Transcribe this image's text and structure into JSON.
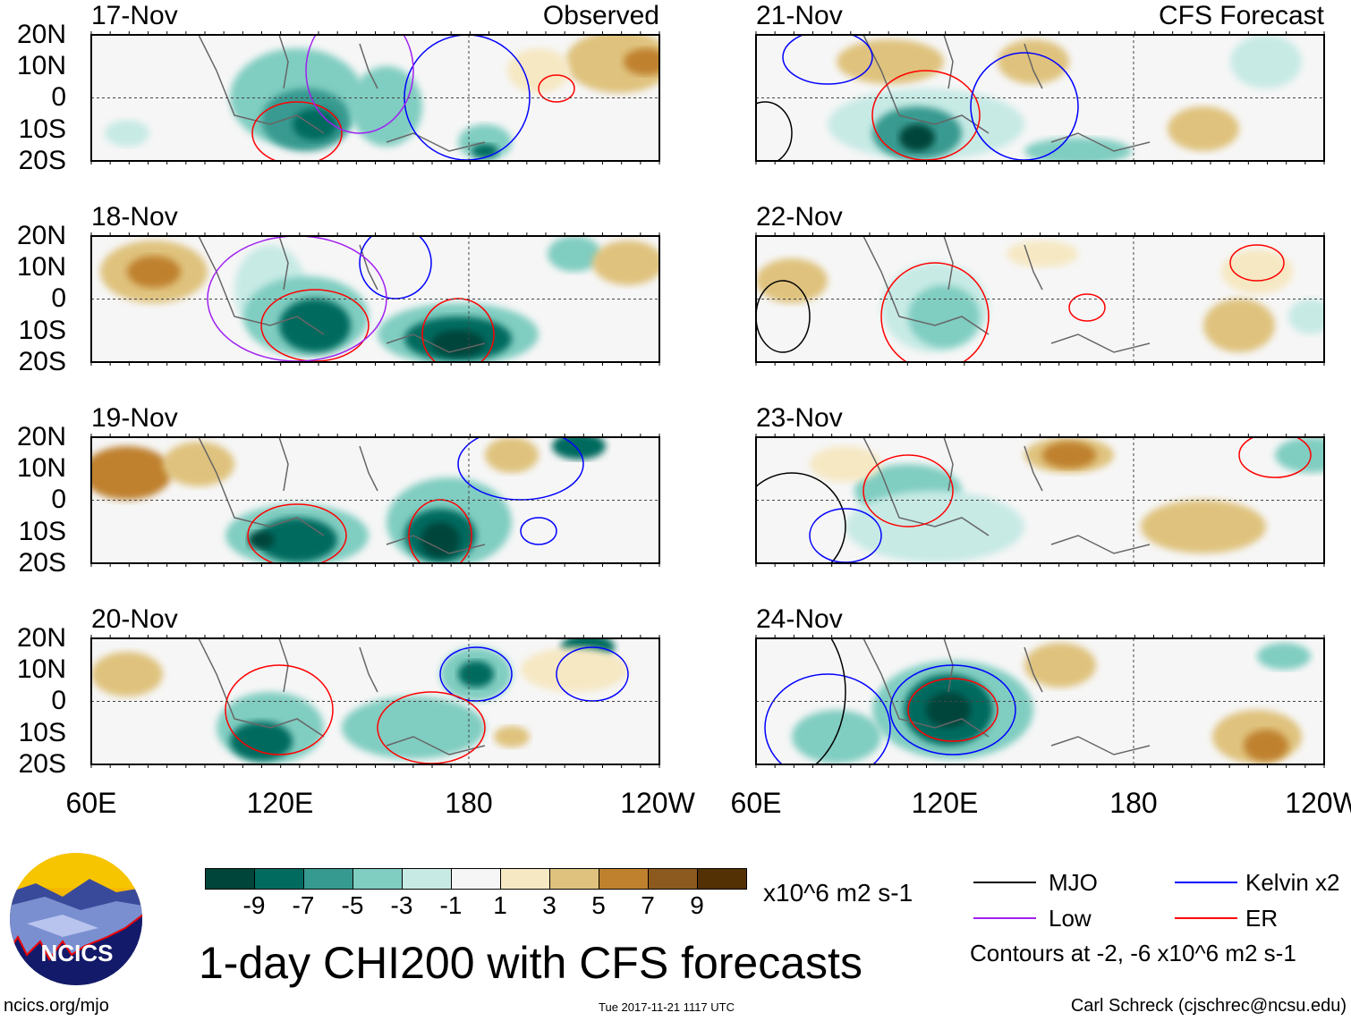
{
  "figure": {
    "title": "1-day CHI200 with CFS forecasts",
    "timestamp": "Tue 2017-11-21 1117 UTC",
    "site": "ncics.org/mjo",
    "author": "Carl Schreck (cjschrec@ncsu.edu)",
    "logo_text": "NCICS"
  },
  "columns": {
    "observed_title": "Observed",
    "forecast_title": "CFS Forecast"
  },
  "panels_left": [
    "17-Nov",
    "18-Nov",
    "19-Nov",
    "20-Nov"
  ],
  "panels_right": [
    "21-Nov",
    "22-Nov",
    "23-Nov",
    "24-Nov"
  ],
  "y_ticks": [
    "20N",
    "10N",
    "0",
    "10S",
    "20S"
  ],
  "x_ticks": [
    "60E",
    "120E",
    "180",
    "120W"
  ],
  "colorbar": {
    "units": "x10^6 m2 s-1",
    "labels": [
      "-9",
      "-7",
      "-5",
      "-3",
      "-1",
      "1",
      "3",
      "5",
      "7",
      "9"
    ],
    "colors": [
      "#00453a",
      "#016b5f",
      "#379a90",
      "#80cdc1",
      "#c7eae5",
      "#f6f6f6",
      "#f6e8c3",
      "#dfc27d",
      "#bf812d",
      "#8c5a1e",
      "#543005"
    ]
  },
  "legend": {
    "items": [
      {
        "label": "MJO",
        "color": "#000000"
      },
      {
        "label": "Kelvin x2",
        "color": "#0000ff"
      },
      {
        "label": "Low",
        "color": "#a020f0"
      },
      {
        "label": "ER",
        "color": "#ff0000"
      }
    ],
    "contours_note": "Contours at -2, -6 x10^6 m2 s-1"
  }
}
